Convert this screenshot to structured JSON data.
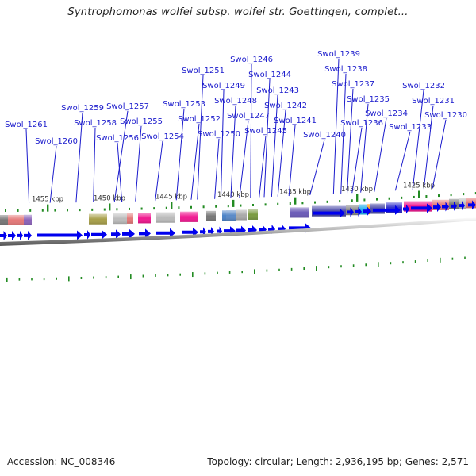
{
  "title": "Syntrophomonas wolfei subsp. wolfei str. Goettingen, complet...",
  "footer": {
    "accession": "Accession: NC_008346",
    "summary": "Topology: circular; Length: 2,936,195 bp; Genes: 2,571"
  },
  "kbp_marks": [
    {
      "label": "1455 kbp",
      "kb": 1455
    },
    {
      "label": "1450 kbp",
      "kb": 1450
    },
    {
      "label": "1445 kbp",
      "kb": 1445
    },
    {
      "label": "1440 kbp",
      "kb": 1440
    },
    {
      "label": "1435 kbp",
      "kb": 1435
    },
    {
      "label": "1430 kbp",
      "kb": 1430
    },
    {
      "label": "1425 kbp",
      "kb": 1425
    }
  ],
  "genes": [
    {
      "name": "Swol_1261",
      "kb": 1456.5
    },
    {
      "name": "Swol_1260",
      "kb": 1454.8
    },
    {
      "name": "Swol_1259",
      "kb": 1452.7
    },
    {
      "name": "Swol_1258",
      "kb": 1451.3
    },
    {
      "name": "Swol_1257",
      "kb": 1449.6
    },
    {
      "name": "Swol_1256",
      "kb": 1449.0
    },
    {
      "name": "Swol_1255",
      "kb": 1447.9
    },
    {
      "name": "Swol_1254",
      "kb": 1446.3
    },
    {
      "name": "Swol_1253",
      "kb": 1444.6
    },
    {
      "name": "Swol_1252",
      "kb": 1443.4
    },
    {
      "name": "Swol_1251",
      "kb": 1442.9
    },
    {
      "name": "Swol_1250",
      "kb": 1441.5
    },
    {
      "name": "Swol_1249",
      "kb": 1441.0
    },
    {
      "name": "Swol_1248",
      "kb": 1440.2
    },
    {
      "name": "Swol_1247",
      "kb": 1439.5
    },
    {
      "name": "Swol_1246",
      "kb": 1438.6
    },
    {
      "name": "Swol_1245",
      "kb": 1437.9
    },
    {
      "name": "Swol_1244",
      "kb": 1437.5
    },
    {
      "name": "Swol_1243",
      "kb": 1436.9
    },
    {
      "name": "Swol_1242",
      "kb": 1436.4
    },
    {
      "name": "Swol_1241",
      "kb": 1435.5
    },
    {
      "name": "Swol_1240",
      "kb": 1433.8
    },
    {
      "name": "Swol_1239",
      "kb": 1431.9
    },
    {
      "name": "Swol_1238",
      "kb": 1431.3
    },
    {
      "name": "Swol_1237",
      "kb": 1430.8
    },
    {
      "name": "Swol_1236",
      "kb": 1430.4
    },
    {
      "name": "Swol_1235",
      "kb": 1429.7
    },
    {
      "name": "Swol_1234",
      "kb": 1428.6
    },
    {
      "name": "Swol_1233",
      "kb": 1426.9
    },
    {
      "name": "Swol_1232",
      "kb": 1425.5
    },
    {
      "name": "Swol_1231",
      "kb": 1424.6
    },
    {
      "name": "Swol_1230",
      "kb": 1423.9
    }
  ],
  "colors": {
    "label": "#1a1acc",
    "arrow": "#0000ee",
    "tick": "#228b22",
    "backbone": "#888888"
  }
}
